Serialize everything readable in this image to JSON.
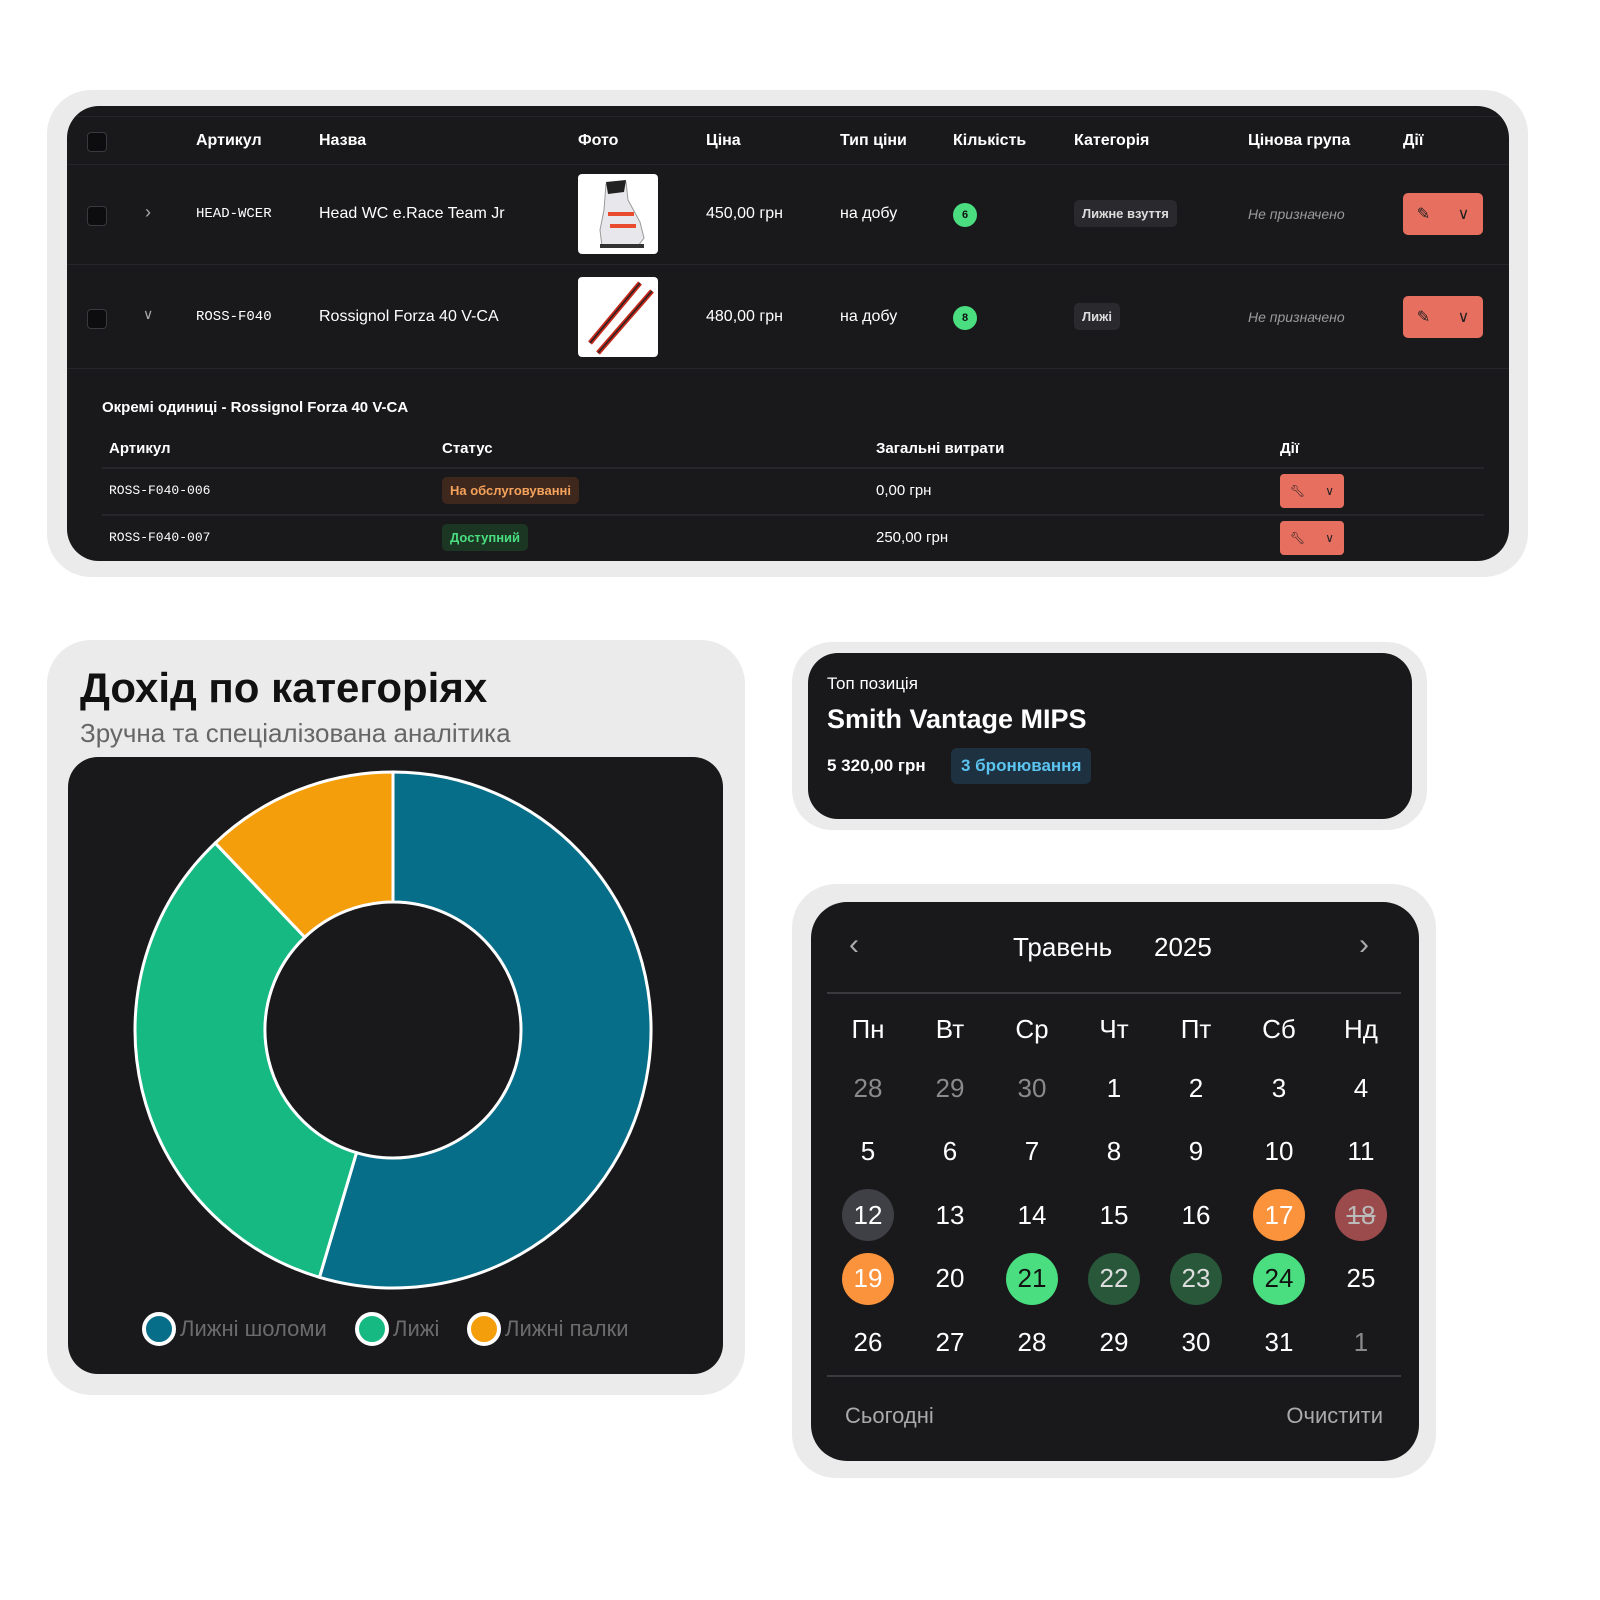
{
  "products_table": {
    "headers": [
      "Артикул",
      "Назва",
      "Фото",
      "Ціна",
      "Тип ціни",
      "Кількість",
      "Категорія",
      "Цінова група",
      "Дії"
    ],
    "rows": [
      {
        "sku": "HEAD-WCER",
        "name": "Head WC e.Race Team Jr",
        "photo": "ski-boot",
        "price": "450,00 грн",
        "price_type": "на добу",
        "qty": "6",
        "category": "Лижне взуття",
        "price_group": "Не призначено",
        "expanded": false
      },
      {
        "sku": "ROSS-F040",
        "name": "Rossignol Forza 40 V-CA",
        "photo": "skis",
        "price": "480,00 грн",
        "price_type": "на добу",
        "qty": "8",
        "category": "Лижі",
        "price_group": "Не призначено",
        "expanded": true
      }
    ],
    "units": {
      "title": "Окремі одиниці - Rossignol Forza 40 V-CA",
      "headers": [
        "Артикул",
        "Статус",
        "Загальні витрати",
        "Дії"
      ],
      "rows": [
        {
          "sku": "ROSS-F040-006",
          "status": "На обслуговуванні",
          "status_color": "#f5a35c",
          "cost": "0,00 грн"
        },
        {
          "sku": "ROSS-F040-007",
          "status": "Доступний",
          "status_color": "#4ade80",
          "cost": "250,00 грн"
        }
      ]
    },
    "action_color": "#e76f60"
  },
  "revenue": {
    "title": "Дохід по категоріях",
    "subtitle": "Зручна та спеціалізована аналітика",
    "chart_data": {
      "type": "pie",
      "donut": true,
      "series": [
        {
          "name": "Лижні шоломи",
          "value": 54.6,
          "color": "#066e89"
        },
        {
          "name": "Лижі",
          "value": 33.3,
          "color": "#15b981"
        },
        {
          "name": "Лижні палки",
          "value": 12.1,
          "color": "#f59e0b"
        }
      ],
      "legend": "bottom"
    }
  },
  "top": {
    "label": "Топ позиція",
    "name": "Smith Vantage MIPS",
    "amount": "5 320,00 грн",
    "bookings": "3 бронювання"
  },
  "calendar": {
    "month": "Травень",
    "year": "2025",
    "weekdays": [
      "Пн",
      "Вт",
      "Ср",
      "Чт",
      "Пт",
      "Сб",
      "Нд"
    ],
    "days": [
      [
        "28",
        "29",
        "30",
        "1",
        "2",
        "3",
        "4"
      ],
      [
        "5",
        "6",
        "7",
        "8",
        "9",
        "10",
        "11"
      ],
      [
        "12",
        "13",
        "14",
        "15",
        "16",
        "17",
        "18"
      ],
      [
        "19",
        "20",
        "21",
        "22",
        "23",
        "24",
        "25"
      ],
      [
        "26",
        "27",
        "28",
        "29",
        "30",
        "31",
        "1"
      ]
    ],
    "today": "Сьогодні",
    "clear": "Очистити"
  }
}
